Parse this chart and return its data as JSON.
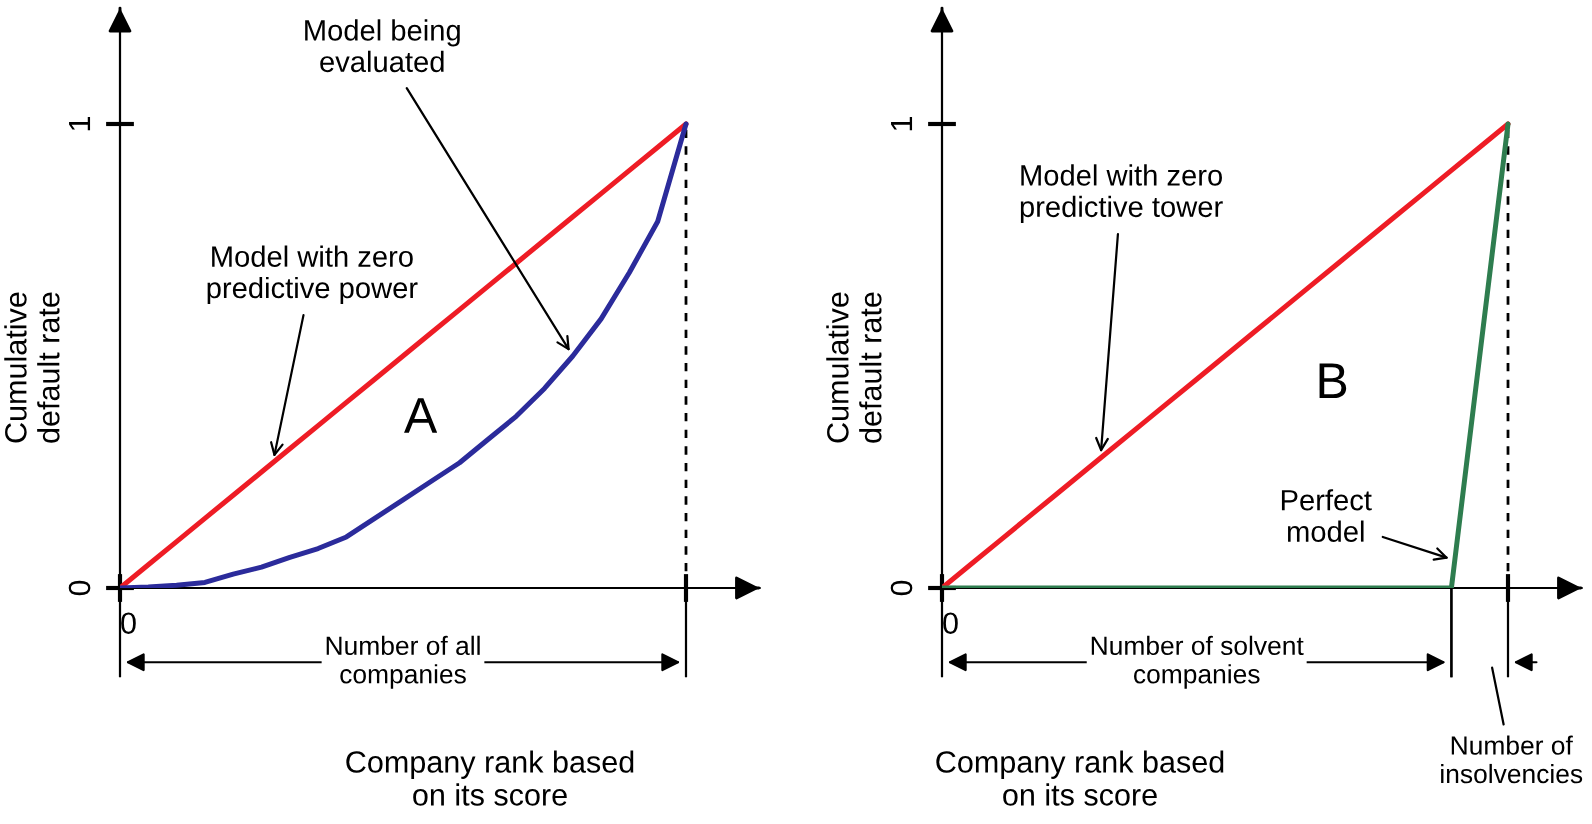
{
  "chart_data": [
    {
      "type": "line",
      "xlabel": "Company rank based\non its score",
      "ylabel": "Cumulative\ndefault rate",
      "categories": [
        null,
        null,
        null,
        null,
        null,
        null,
        null,
        null,
        null,
        null,
        null,
        null,
        null,
        null,
        null,
        null,
        null,
        null,
        null,
        null,
        null
      ],
      "ylim": [
        0,
        1.25
      ],
      "yticks": [
        0,
        1
      ],
      "series": [
        {
          "color": "#ee1c25",
          "values": [
            0,
            0.05,
            0.1,
            0.15,
            0.2,
            0.25,
            0.3,
            0.35,
            0.4,
            0.45,
            0.5,
            0.55,
            0.6,
            0.65,
            0.7,
            0.75,
            0.8,
            0.85,
            0.9,
            0.95,
            1
          ]
        },
        {
          "color": "#2b2b9b",
          "values": [
            0,
            0.002,
            0.006,
            0.012,
            0.03,
            0.045,
            0.066,
            0.085,
            0.11,
            0.15,
            0.19,
            0.23,
            0.27,
            0.32,
            0.37,
            0.43,
            0.5,
            0.58,
            0.68,
            0.79,
            1
          ]
        }
      ],
      "ref_lines": [
        {
          "axis": "x",
          "line_style": "dashed",
          "color": "#000000"
        }
      ],
      "annotations": [
        "Model with zero\npredictive power",
        "Model being\nevaluated",
        "A",
        "Number of all\ncompanies",
        "0"
      ]
    },
    {
      "type": "line",
      "xlabel": "Company rank based\non its score",
      "ylabel": "Cumulative\ndefault rate",
      "categories": [
        null,
        null,
        null,
        null,
        null,
        null,
        null,
        null,
        null,
        null,
        null,
        null,
        null,
        null,
        null,
        null,
        null,
        null,
        null,
        null,
        null
      ],
      "ylim": [
        0,
        1.25
      ],
      "yticks": [
        0,
        1
      ],
      "series": [
        {
          "color": "#ee1c25",
          "values": [
            0,
            0.05,
            0.1,
            0.15,
            0.2,
            0.25,
            0.3,
            0.35,
            0.4,
            0.45,
            0.5,
            0.55,
            0.6,
            0.65,
            0.7,
            0.75,
            0.8,
            0.85,
            0.9,
            0.95,
            1
          ]
        },
        {
          "color": "#2e7d4f",
          "values": [
            0,
            0,
            0,
            0,
            0,
            0,
            0,
            0,
            0,
            0,
            0,
            0,
            0,
            0,
            0,
            0,
            0,
            0,
            0,
            0.5,
            1
          ]
        }
      ],
      "ref_lines": [
        {
          "axis": "x",
          "line_style": "dashed",
          "color": "#000000"
        }
      ],
      "annotations": [
        "Model with zero\npredictive tower",
        "Perfect\nmodel",
        "B",
        "Number of solvent\ncompanies",
        "Number of\ninsolvencies",
        "0"
      ]
    }
  ]
}
